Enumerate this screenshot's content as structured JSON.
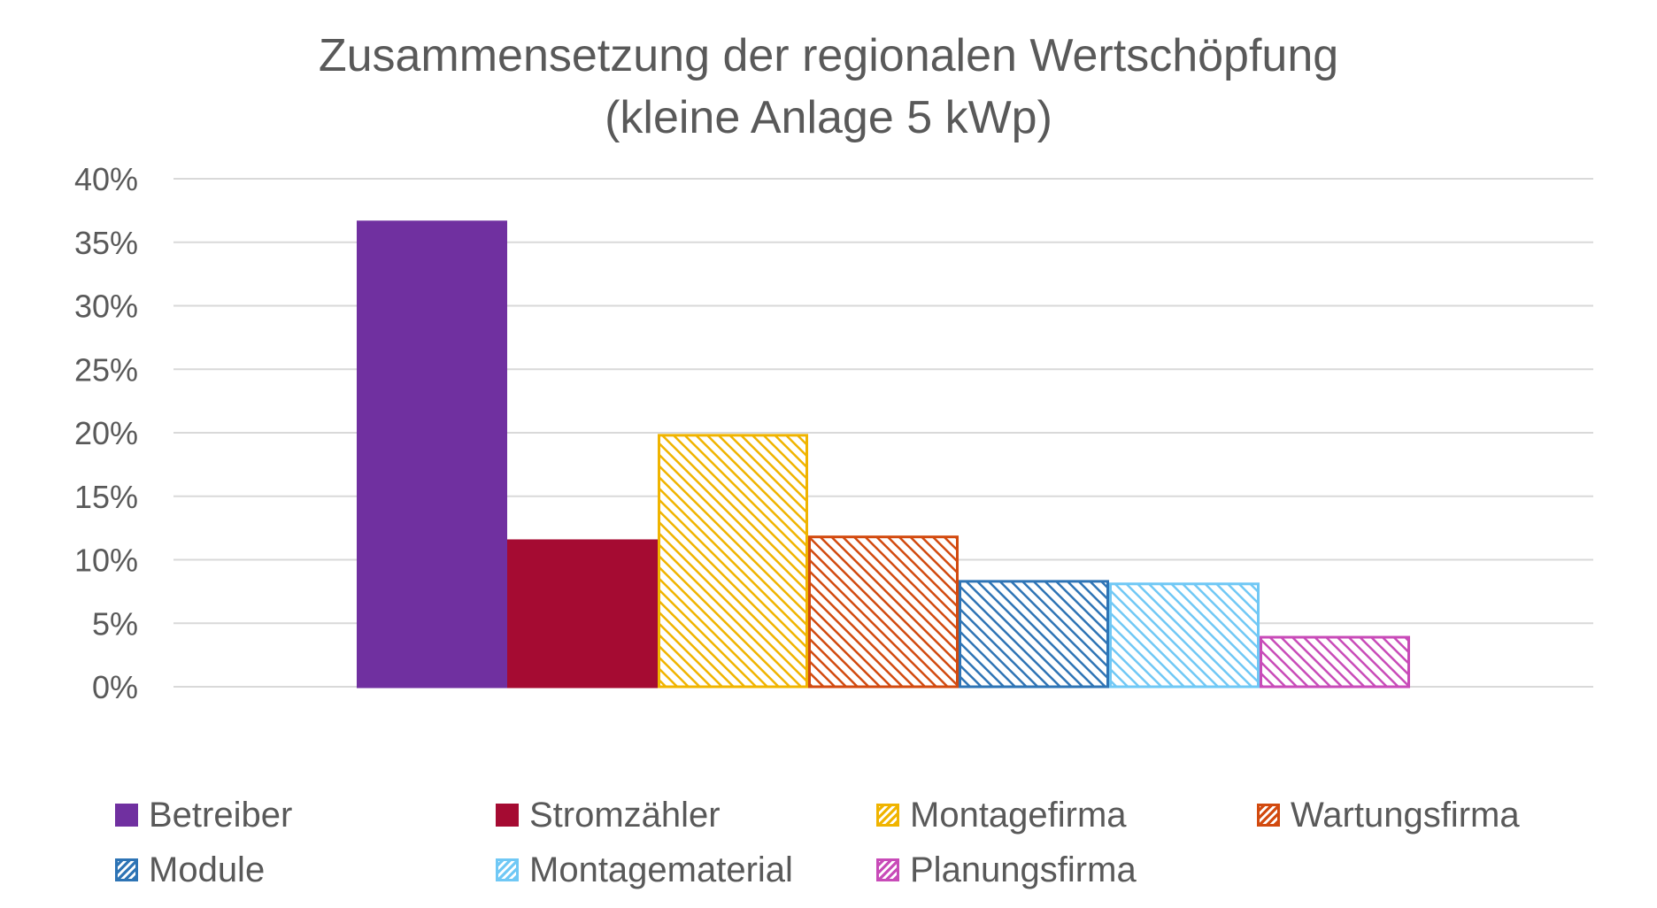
{
  "chart_data": {
    "type": "bar",
    "title": "Zusammensetzung der regionalen Wertschöpfung",
    "subtitle": "(kleine Anlage 5 kWp)",
    "xlabel": "",
    "ylabel": "",
    "ylim": [
      0,
      40
    ],
    "y_ticks": [
      "0%",
      "5%",
      "10%",
      "15%",
      "20%",
      "25%",
      "30%",
      "35%",
      "40%"
    ],
    "grid": true,
    "legend_position": "bottom",
    "series": [
      {
        "name": "Betreiber",
        "value": 36.6,
        "color": "#7030A0",
        "pattern": "solid"
      },
      {
        "name": "Stromzähler",
        "value": 11.5,
        "color": "#A50B32",
        "pattern": "solid"
      },
      {
        "name": "Montagefirma",
        "value": 19.8,
        "color": "#F0B400",
        "pattern": "hatch"
      },
      {
        "name": "Wartungsfirma",
        "value": 11.8,
        "color": "#D24A0F",
        "pattern": "hatch"
      },
      {
        "name": "Module",
        "value": 8.3,
        "color": "#2E74B5",
        "pattern": "hatch"
      },
      {
        "name": "Montagematerial",
        "value": 8.1,
        "color": "#70C8F5",
        "pattern": "hatch"
      },
      {
        "name": "Planungsfirma",
        "value": 3.9,
        "color": "#C84BB8",
        "pattern": "hatch"
      }
    ]
  }
}
